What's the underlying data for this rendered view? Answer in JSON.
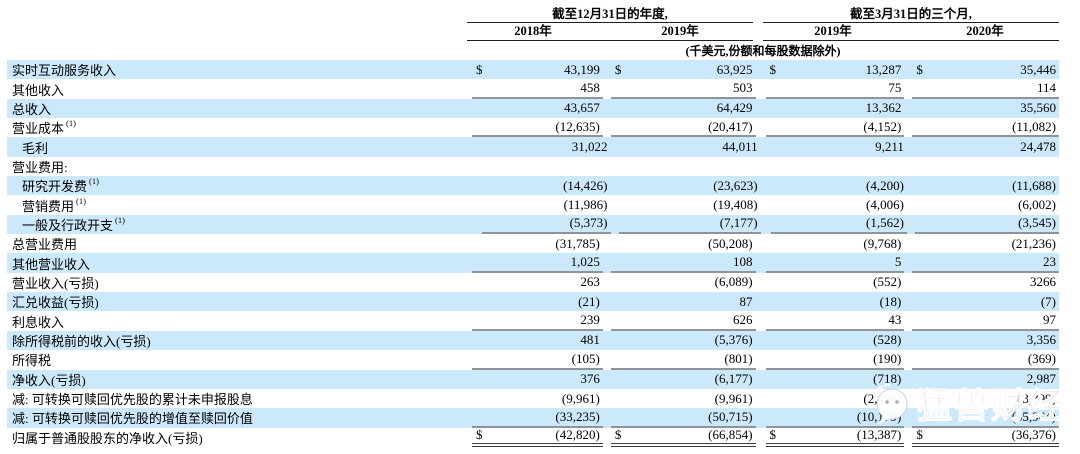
{
  "meta": {
    "highlight_color": "#cce9fb",
    "rule_color": "#8f9499",
    "currency_symbol": "$"
  },
  "header": {
    "groups": [
      {
        "title": "截至12月31日的年度,",
        "cols": [
          "2018年",
          "2019年"
        ]
      },
      {
        "title": "截至3月31日的三个月,",
        "cols": [
          "2019年",
          "2020年"
        ]
      }
    ],
    "unit_note": "(千美元,份额和每股数据除外)"
  },
  "rows": [
    {
      "label": "实时互动服务收入",
      "sup": "",
      "indent": false,
      "dollar": true,
      "highlight": true,
      "rule": "none",
      "values": [
        "43,199",
        "63,925",
        "13,287",
        "35,446"
      ]
    },
    {
      "label": "其他收入",
      "sup": "",
      "indent": false,
      "dollar": false,
      "highlight": false,
      "rule": "single",
      "values": [
        "458",
        "503",
        "75",
        "114"
      ]
    },
    {
      "label": "总收入",
      "sup": "",
      "indent": false,
      "dollar": false,
      "highlight": true,
      "rule": "none",
      "values": [
        "43,657",
        "64,429",
        "13,362",
        "35,560"
      ]
    },
    {
      "label": "营业成本",
      "sup": "(1)",
      "indent": false,
      "dollar": false,
      "highlight": false,
      "rule": "single",
      "values": [
        "(12,635)",
        "(20,417)",
        "(4,152)",
        "(11,082)"
      ]
    },
    {
      "label": "毛利",
      "sup": "",
      "indent": true,
      "dollar": false,
      "highlight": true,
      "rule": "none",
      "values": [
        "31,022",
        "44,011",
        "9,211",
        "24,478"
      ]
    },
    {
      "label": "营业费用:",
      "sup": "",
      "indent": false,
      "dollar": false,
      "highlight": false,
      "rule": "none",
      "values": [
        "",
        "",
        "",
        ""
      ]
    },
    {
      "label": "研究开发费",
      "sup": "(1)",
      "indent": true,
      "dollar": false,
      "highlight": true,
      "rule": "none",
      "values": [
        "(14,426)",
        "(23,623)",
        "(4,200)",
        "(11,688)"
      ]
    },
    {
      "label": "营销费用",
      "sup": "(1)",
      "indent": true,
      "dollar": false,
      "highlight": false,
      "rule": "none",
      "values": [
        "(11,986)",
        "(19,408)",
        "(4,006)",
        "(6,002)"
      ]
    },
    {
      "label": "一般及行政开支",
      "sup": "(1)",
      "indent": true,
      "dollar": false,
      "highlight": true,
      "rule": "single",
      "values": [
        "(5,373)",
        "(7,177)",
        "(1,562)",
        "(3,545)"
      ]
    },
    {
      "label": "总营业费用",
      "sup": "",
      "indent": false,
      "dollar": false,
      "highlight": false,
      "rule": "none",
      "values": [
        "(31,785)",
        "(50,208)",
        "(9,768)",
        "(21,236)"
      ]
    },
    {
      "label": "其他营业收入",
      "sup": "",
      "indent": false,
      "dollar": false,
      "highlight": true,
      "rule": "single",
      "values": [
        "1,025",
        "108",
        "5",
        "23"
      ]
    },
    {
      "label": "营业收入(亏损)",
      "sup": "",
      "indent": false,
      "dollar": false,
      "highlight": false,
      "rule": "none",
      "values": [
        "263",
        "(6,089)",
        "(552)",
        "3266"
      ]
    },
    {
      "label": "汇兑收益(亏损)",
      "sup": "",
      "indent": false,
      "dollar": false,
      "highlight": true,
      "rule": "none",
      "values": [
        "(21)",
        "87",
        "(18)",
        "(7)"
      ]
    },
    {
      "label": "利息收入",
      "sup": "",
      "indent": false,
      "dollar": false,
      "highlight": false,
      "rule": "single",
      "values": [
        "239",
        "626",
        "43",
        "97"
      ]
    },
    {
      "label": "除所得税前的收入(亏损)",
      "sup": "",
      "indent": false,
      "dollar": false,
      "highlight": true,
      "rule": "none",
      "values": [
        "481",
        "(5,376)",
        "(528)",
        "3,356"
      ]
    },
    {
      "label": "所得税",
      "sup": "",
      "indent": false,
      "dollar": false,
      "highlight": false,
      "rule": "single",
      "values": [
        "(105)",
        "(801)",
        "(190)",
        "(369)"
      ]
    },
    {
      "label": "净收入(亏损)",
      "sup": "",
      "indent": false,
      "dollar": false,
      "highlight": true,
      "rule": "none",
      "values": [
        "376",
        "(6,177)",
        "(718)",
        "2,987"
      ]
    },
    {
      "label": "减: 可转换可赎回优先股的累计未申报股息",
      "sup": "",
      "indent": false,
      "dollar": false,
      "highlight": false,
      "rule": "none",
      "values": [
        "(9,961)",
        "(9,961)",
        "(2,490)",
        "(3,399)"
      ]
    },
    {
      "label": "减: 可转换可赎回优先股的增值至赎回价值",
      "sup": "",
      "indent": false,
      "dollar": false,
      "highlight": true,
      "rule": "single",
      "values": [
        "(33,235)",
        "(50,715)",
        "(10,179)",
        "(35,964)"
      ]
    },
    {
      "label": "归属于普通股股东的净收入(亏损)",
      "sup": "",
      "indent": false,
      "dollar": true,
      "highlight": false,
      "rule": "double",
      "values": [
        "(42,820)",
        "(66,854)",
        "(13,387)",
        "(36,376)"
      ]
    }
  ],
  "watermark": {
    "text": "猛兽财经",
    "icon": "wechat-chat-bubble-icon"
  }
}
